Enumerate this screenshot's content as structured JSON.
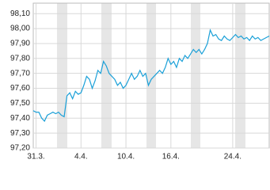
{
  "chart_data": {
    "type": "line",
    "series": [
      {
        "color": "#1aa0d8",
        "values": [
          97.45,
          97.44,
          97.44,
          97.4,
          97.38,
          97.42,
          97.43,
          97.44,
          97.43,
          97.44,
          97.42,
          97.41,
          97.55,
          97.57,
          97.53,
          97.58,
          97.56,
          97.57,
          97.62,
          97.68,
          97.66,
          97.6,
          97.65,
          97.72,
          97.7,
          97.78,
          97.75,
          97.7,
          97.68,
          97.66,
          97.62,
          97.64,
          97.6,
          97.62,
          97.66,
          97.7,
          97.66,
          97.68,
          97.72,
          97.68,
          97.7,
          97.62,
          97.66,
          97.68,
          97.7,
          97.72,
          97.7,
          97.74,
          97.8,
          97.76,
          97.78,
          97.74,
          97.8,
          97.78,
          97.82,
          97.8,
          97.83,
          97.86,
          97.84,
          97.86,
          97.83,
          97.86,
          97.9,
          97.99,
          97.95,
          97.96,
          97.93,
          97.92,
          97.95,
          97.93,
          97.92,
          97.94,
          97.96,
          97.94,
          97.95,
          97.93,
          97.94,
          97.92,
          97.95,
          97.93,
          97.94,
          97.92,
          97.93,
          97.94,
          97.95
        ]
      }
    ],
    "ylim": [
      97.2,
      98.17
    ],
    "yticks": [
      {
        "value": 97.2,
        "label": "97,20"
      },
      {
        "value": 97.3,
        "label": "97,30"
      },
      {
        "value": 97.4,
        "label": "97,40"
      },
      {
        "value": 97.5,
        "label": "97,50"
      },
      {
        "value": 97.6,
        "label": "97,60"
      },
      {
        "value": 97.7,
        "label": "97,70"
      },
      {
        "value": 97.8,
        "label": "97,80"
      },
      {
        "value": 97.9,
        "label": "97,90"
      },
      {
        "value": 98.0,
        "label": "98,00"
      },
      {
        "value": 98.1,
        "label": "98,10"
      }
    ],
    "xlim": [
      0,
      84
    ],
    "xticks": [
      {
        "value": 1,
        "label": "31.3."
      },
      {
        "value": 17,
        "label": "4.4."
      },
      {
        "value": 33,
        "label": "10.4."
      },
      {
        "value": 49,
        "label": "16.4."
      },
      {
        "value": 71,
        "label": "24.4."
      }
    ],
    "grid": true
  }
}
